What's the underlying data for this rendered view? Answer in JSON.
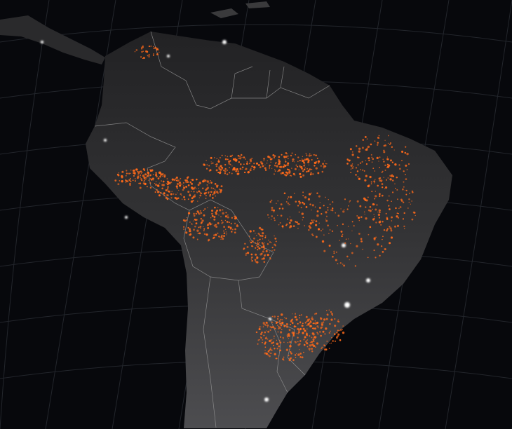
{
  "map": {
    "subject": "fires",
    "colors": {
      "ocean": "#07080c",
      "land": "#2b2b2d",
      "land_south": "#4a4a4c",
      "borders": "#9a9a9a",
      "graticule": "#23262c",
      "fire": "#ff6a1a",
      "city_lights": "#ffffff"
    }
  }
}
